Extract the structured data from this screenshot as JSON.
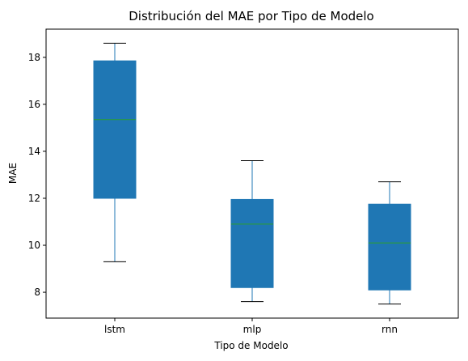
{
  "chart_data": {
    "type": "box",
    "title": "Distribución del MAE por Tipo de Modelo",
    "xlabel": "Tipo de Modelo",
    "ylabel": "MAE",
    "ylim": [
      6.9,
      19.2
    ],
    "yticks": [
      8,
      10,
      12,
      14,
      16,
      18
    ],
    "grid": false,
    "categories": [
      "lstm",
      "mlp",
      "rnn"
    ],
    "boxes": [
      {
        "category": "lstm",
        "whisker_low": 9.3,
        "q1": 12.0,
        "median": 15.35,
        "q3": 17.85,
        "whisker_high": 18.6
      },
      {
        "category": "mlp",
        "whisker_low": 7.6,
        "q1": 8.2,
        "median": 10.9,
        "q3": 11.95,
        "whisker_high": 13.6
      },
      {
        "category": "rnn",
        "whisker_low": 7.5,
        "q1": 8.1,
        "median": 10.1,
        "q3": 11.75,
        "whisker_high": 12.7
      }
    ],
    "colors": {
      "box_fill": "#1f77b4",
      "box_edge": "#1f77b4",
      "median": "#2ca02c",
      "whisker": "#1f77b4",
      "cap": "#000000"
    }
  }
}
